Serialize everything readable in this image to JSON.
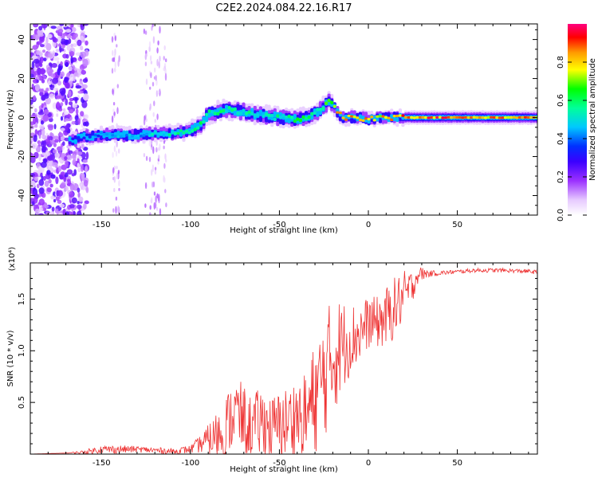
{
  "title": "C2E2.2024.084.22.16.R17",
  "chart_data": [
    {
      "type": "heatmap",
      "xlabel": "Height of straight line (km)",
      "ylabel": "Frequency (Hz)",
      "xlim": [
        -190,
        95
      ],
      "ylim": [
        -50,
        48
      ],
      "x_ticks": [
        -150,
        -100,
        -50,
        0,
        50
      ],
      "x_tick_labels": [
        "-150",
        "-100",
        "-50",
        "0",
        "50"
      ],
      "y_ticks": [
        -40,
        -20,
        0,
        20,
        40
      ],
      "y_tick_labels": [
        "-40",
        "-20",
        "0",
        "20",
        "40"
      ],
      "colorbar": {
        "label": "Normalized spectral amplitude",
        "range": [
          0.0,
          1.0
        ],
        "ticks": [
          0.0,
          0.2,
          0.4,
          0.6,
          0.8
        ],
        "tick_labels": [
          "0.0",
          "0.2",
          "0.4",
          "0.6",
          "0.8"
        ],
        "colors": [
          "#ffffff",
          "#e6c9ff",
          "#9b30ff",
          "#3a00ff",
          "#0030ff",
          "#00c8ff",
          "#00ff9a",
          "#00ff00",
          "#ffff00",
          "#ff9b00",
          "#ff0000",
          "#ff007f"
        ]
      },
      "ridge": {
        "x": [
          -168,
          -160,
          -150,
          -140,
          -130,
          -120,
          -110,
          -100,
          -95,
          -90,
          -80,
          -70,
          -60,
          -50,
          -40,
          -30,
          -22,
          -15,
          -5,
          0,
          10,
          20,
          40,
          60,
          80,
          95
        ],
        "frequency": [
          -12,
          -10,
          -9,
          -9,
          -9,
          -8,
          -8,
          -7,
          -4,
          2,
          4,
          3,
          1,
          0,
          -1,
          2,
          8,
          0,
          0,
          -1,
          0,
          0,
          0,
          0,
          0,
          0
        ],
        "amplitude": [
          0.3,
          0.35,
          0.4,
          0.45,
          0.45,
          0.5,
          0.55,
          0.6,
          0.6,
          0.55,
          0.55,
          0.55,
          0.5,
          0.55,
          0.6,
          0.6,
          0.65,
          0.9,
          0.85,
          0.85,
          0.8,
          0.9,
          0.9,
          0.85,
          0.85,
          0.85
        ]
      }
    },
    {
      "type": "line",
      "xlabel": "Height of straight line (km)",
      "ylabel": "SNR (10 * v/v)",
      "y_scale_note": "(x10⁴)",
      "xlim": [
        -190,
        95
      ],
      "ylim": [
        0,
        1.85
      ],
      "x_ticks": [
        -150,
        -100,
        -50,
        0,
        50
      ],
      "x_tick_labels": [
        "-150",
        "-100",
        "-50",
        "0",
        "50"
      ],
      "y_ticks": [
        0.5,
        1.0,
        1.5
      ],
      "y_tick_labels": [
        "0.5",
        "1.0",
        "1.5"
      ],
      "series": [
        {
          "color": "#ee3333",
          "x": [
            -190,
            -170,
            -160,
            -150,
            -140,
            -130,
            -120,
            -110,
            -100,
            -95,
            -90,
            -85,
            -80,
            -75,
            -70,
            -65,
            -60,
            -55,
            -50,
            -45,
            -40,
            -35,
            -30,
            -25,
            -20,
            -15,
            -10,
            -5,
            0,
            5,
            10,
            15,
            20,
            25,
            28,
            35,
            45,
            60,
            75,
            90,
            95
          ],
          "values": [
            0.0,
            0.01,
            0.02,
            0.05,
            0.05,
            0.05,
            0.04,
            0.03,
            0.05,
            0.1,
            0.15,
            0.2,
            0.3,
            0.45,
            0.35,
            0.3,
            0.35,
            0.28,
            0.3,
            0.35,
            0.4,
            0.4,
            0.6,
            0.8,
            1.0,
            1.1,
            1.15,
            1.2,
            1.3,
            1.3,
            1.35,
            1.45,
            1.55,
            1.65,
            1.75,
            1.75,
            1.76,
            1.78,
            1.78,
            1.77,
            1.76
          ],
          "noise": [
            0.0,
            0.0,
            0.02,
            0.04,
            0.04,
            0.03,
            0.03,
            0.03,
            0.04,
            0.08,
            0.15,
            0.25,
            0.3,
            0.35,
            0.35,
            0.3,
            0.35,
            0.3,
            0.35,
            0.35,
            0.4,
            0.45,
            0.55,
            0.6,
            0.6,
            0.45,
            0.35,
            0.3,
            0.25,
            0.25,
            0.3,
            0.3,
            0.25,
            0.15,
            0.08,
            0.03,
            0.02,
            0.02,
            0.02,
            0.02,
            0.02
          ]
        }
      ]
    }
  ]
}
